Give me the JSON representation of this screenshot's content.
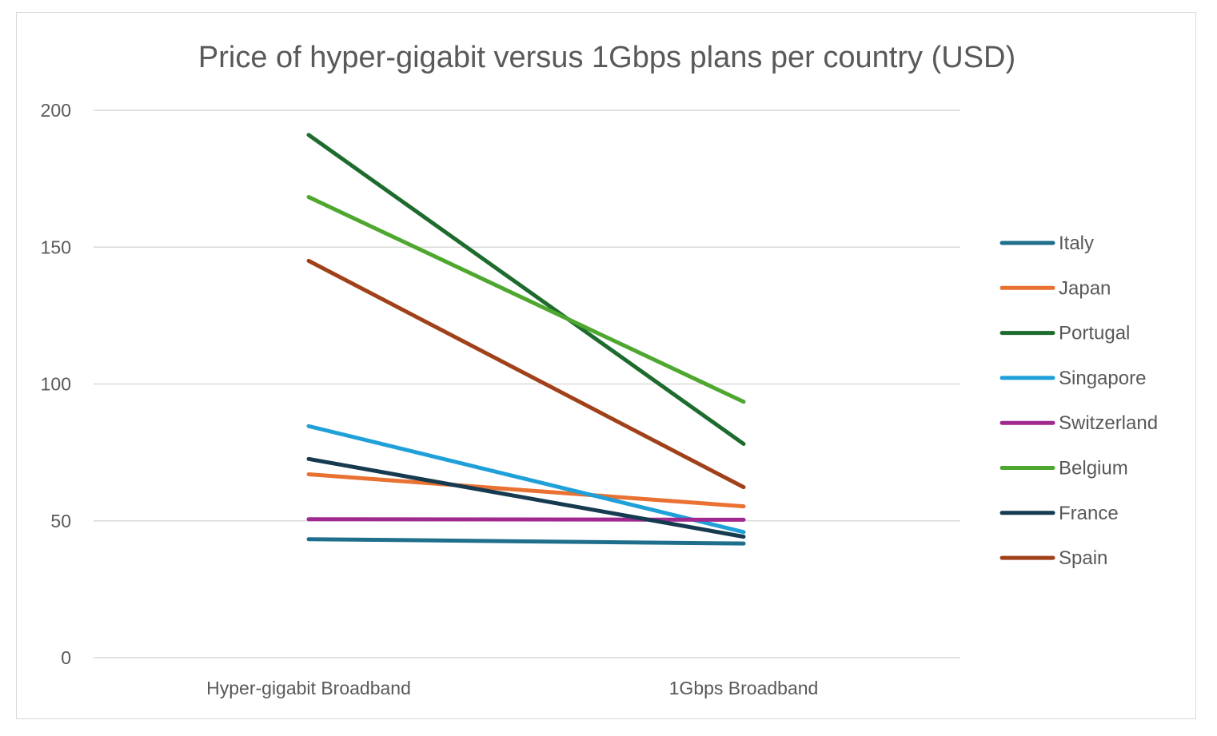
{
  "chart_data": {
    "type": "line",
    "title": "Price of hyper-gigabit versus 1Gbps plans per country (USD)",
    "xlabel": "",
    "ylabel": "",
    "categories": [
      "Hyper-gigabit Broadband",
      "1Gbps Broadband"
    ],
    "ylim": [
      0,
      200
    ],
    "yticks": [
      0,
      50,
      100,
      150,
      200
    ],
    "grid": true,
    "legend_position": "right",
    "series": [
      {
        "name": "Italy",
        "color": "#1f6e8c",
        "values": [
          43.3,
          41.7
        ]
      },
      {
        "name": "Japan",
        "color": "#e97132",
        "values": [
          67.0,
          55.3
        ]
      },
      {
        "name": "Portugal",
        "color": "#1e6b2e",
        "values": [
          191.0,
          78.1
        ]
      },
      {
        "name": "Singapore",
        "color": "#1fa0d8",
        "values": [
          84.6,
          45.9
        ]
      },
      {
        "name": "Switzerland",
        "color": "#a0298f",
        "values": [
          50.6,
          50.4
        ]
      },
      {
        "name": "Belgium",
        "color": "#4ea72e",
        "values": [
          168.3,
          93.5
        ]
      },
      {
        "name": "France",
        "color": "#163a50",
        "values": [
          72.6,
          44.2
        ]
      },
      {
        "name": "Spain",
        "color": "#a0411a",
        "values": [
          145.0,
          62.3
        ]
      }
    ]
  }
}
